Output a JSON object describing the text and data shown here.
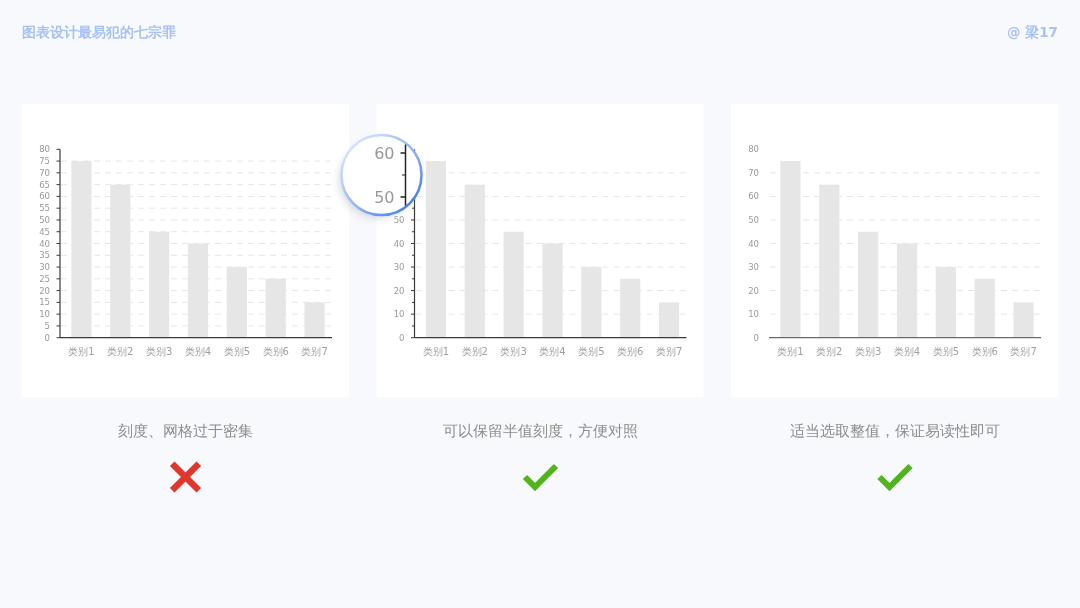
{
  "chart_data": [
    {
      "type": "bar",
      "title": "图表设计最易犯的七宗罪",
      "categories": [
        "类别1",
        "类别2",
        "类别3",
        "类别4",
        "类别5",
        "类别6",
        "类别7"
      ],
      "values": [
        75,
        65,
        45,
        40,
        30,
        25,
        15
      ],
      "color": "#e6e6e6",
      "ylim": [
        0,
        80
      ],
      "yticks": [
        0,
        5,
        10,
        15,
        20,
        25,
        30,
        35,
        40,
        45,
        50,
        55,
        60,
        65,
        70,
        75,
        80
      ],
      "grid": "y",
      "annotations": [
        "刻度、网格过于密集"
      ]
    },
    {
      "type": "bar",
      "categories": [
        "类别1",
        "类别2",
        "类别3",
        "类别4",
        "类别5",
        "类别6",
        "类别7"
      ],
      "values": [
        75,
        65,
        45,
        40,
        30,
        25,
        15
      ],
      "color": "#e6e6e6",
      "ylim": [
        0,
        80
      ],
      "yticks": [
        0,
        {
          "value": 5,
          "label": null
        },
        10,
        {
          "value": 15,
          "label": null
        },
        20,
        {
          "value": 25,
          "label": null
        },
        30,
        {
          "value": 35,
          "label": null
        },
        40,
        {
          "value": 45,
          "label": null
        },
        50,
        {
          "value": 55,
          "label": null
        },
        {
          "value": 60,
          "label": null
        },
        {
          "value": 70,
          "label": null
        }
      ],
      "grid": "y",
      "annotations": [
        "可以保留半值刻度，方便对照",
        "60",
        "50"
      ]
    },
    {
      "type": "bar",
      "categories": [
        "类别1",
        "类别2",
        "类别3",
        "类别4",
        "类别5",
        "类别6",
        "类别7"
      ],
      "values": [
        75,
        65,
        45,
        40,
        30,
        25,
        15
      ],
      "color": "#e6e6e6",
      "ylim": [
        0,
        80
      ],
      "yticks": [
        0,
        10,
        20,
        30,
        40,
        50,
        60,
        70,
        80
      ],
      "grid": "y",
      "annotations": [
        "适当选取整值，保证易读性即可",
        "@ 梁17"
      ]
    }
  ]
}
